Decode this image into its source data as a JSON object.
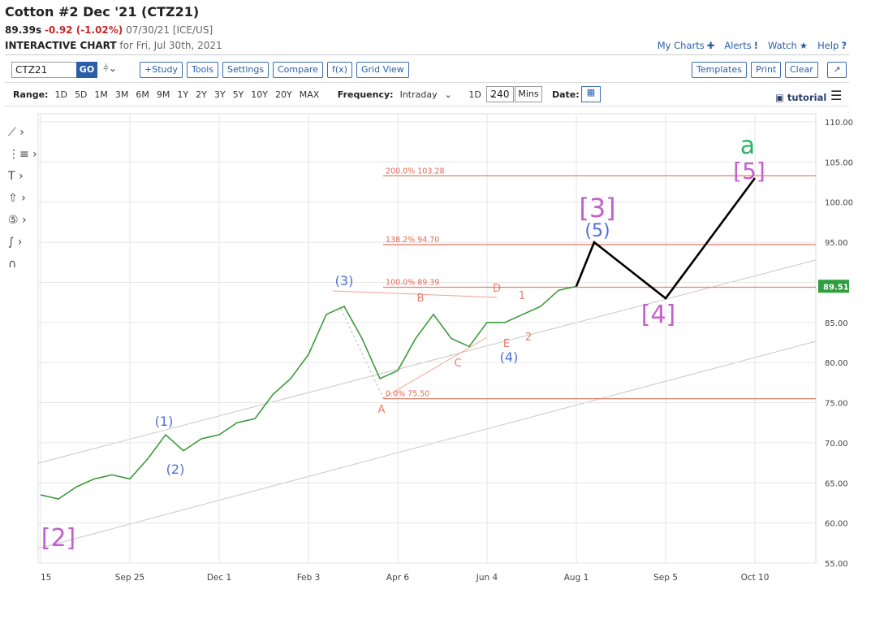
{
  "header": {
    "title": "Cotton #2 Dec '21 (CTZ21)",
    "price": "89.39s",
    "change": "-0.92 (-1.02%)",
    "date_exchange": "07/30/21 [ICE/US]",
    "chart_label": "INTERACTIVE CHART",
    "chart_date": "for Fri, Jul 30th, 2021",
    "links": [
      "My Charts",
      "Alerts",
      "Watch",
      "Help"
    ]
  },
  "toolbar": {
    "symbol": "CTZ21",
    "go": "GO",
    "left_buttons": [
      "+Study",
      "Tools",
      "Settings",
      "Compare",
      "f(x)",
      "Grid View"
    ],
    "right_buttons": [
      "Templates",
      "Print",
      "Clear"
    ]
  },
  "range_bar": {
    "range_label": "Range:",
    "ranges": [
      "1D",
      "5D",
      "1M",
      "3M",
      "6M",
      "9M",
      "1Y",
      "2Y",
      "3Y",
      "5Y",
      "10Y",
      "20Y",
      "MAX"
    ],
    "frequency_label": "Frequency:",
    "frequency": "Intraday",
    "period": "1D",
    "interval": "240",
    "interval_unit": "Mins",
    "date_label": "Date:",
    "tutorial": "tutorial"
  },
  "chart_data": {
    "type": "line",
    "categories": [
      "15",
      null,
      null,
      null,
      null,
      "Sep 25",
      null,
      null,
      null,
      null,
      "Dec 1",
      null,
      null,
      null,
      null,
      "Feb 3",
      null,
      null,
      null,
      null,
      "Apr 6",
      null,
      null,
      null,
      null,
      "Jun 4",
      null,
      null,
      null,
      null,
      "Aug 1",
      null,
      null,
      null,
      null,
      "Sep 5",
      null,
      null,
      null,
      null,
      "Oct 10",
      null,
      null
    ],
    "series": [
      {
        "color": "#3c9a3c",
        "values": [
          63.5,
          63,
          64.5,
          65.5,
          66,
          65.5,
          68,
          71,
          69,
          70.5,
          71,
          72.5,
          73,
          76,
          78,
          81,
          86,
          87,
          83,
          78,
          79,
          83,
          86,
          83,
          82,
          85,
          85,
          86,
          87,
          89,
          89.5,
          null,
          null,
          null,
          null,
          null,
          null,
          null,
          null,
          null,
          null,
          null,
          null
        ]
      },
      {
        "color": "#000000",
        "values": [
          null,
          null,
          null,
          null,
          null,
          null,
          null,
          null,
          null,
          null,
          null,
          null,
          null,
          null,
          null,
          null,
          null,
          null,
          null,
          null,
          null,
          null,
          null,
          null,
          null,
          null,
          null,
          null,
          null,
          null,
          89.5,
          95,
          93.25,
          91.5,
          89.75,
          88,
          91,
          94,
          97,
          100,
          103,
          null,
          null
        ]
      }
    ],
    "ylim": [
      55,
      110
    ],
    "yticks": [
      {
        "value": 55,
        "label": "55.00"
      },
      {
        "value": 60,
        "label": "60.00"
      },
      {
        "value": 65,
        "label": "65.00"
      },
      {
        "value": 70,
        "label": "70.00"
      },
      {
        "value": 75,
        "label": "75.00"
      },
      {
        "value": 80,
        "label": "80.00"
      },
      {
        "value": 85,
        "label": "85.00"
      },
      {
        "value": 90,
        "label": "90.00"
      },
      {
        "value": 95,
        "label": "95.00"
      },
      {
        "value": 100,
        "label": "100.00"
      },
      {
        "value": 105,
        "label": "105.00"
      },
      {
        "value": 110,
        "label": "110.00"
      }
    ],
    "grid": true,
    "price_label": 89.51,
    "fib_levels": [
      {
        "label": "200.0% 103.28",
        "value": 103.28
      },
      {
        "label": "138.2% 94.70",
        "value": 94.7
      },
      {
        "label": "100.0% 89.39",
        "value": 89.39
      },
      {
        "label": "0.0% 75.50",
        "value": 75.5
      }
    ],
    "wave_labels": [
      "[2]",
      "(1)",
      "(2)",
      "(3)",
      "A",
      "B",
      "C",
      "D",
      "E",
      "(4)",
      "1",
      "2",
      "[3]",
      "(5)",
      "[4]",
      "[5]",
      "a"
    ]
  }
}
